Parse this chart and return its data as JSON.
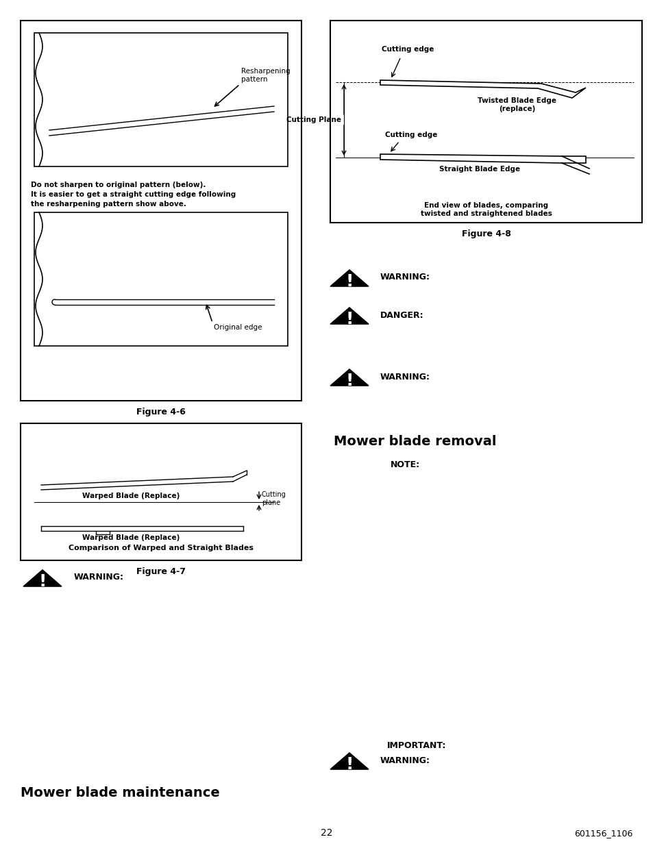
{
  "bg_color": "#ffffff",
  "page_num": "22",
  "page_code": "601156_1106",
  "fig6_caption": "Figure 4-6",
  "fig7_caption": "Figure 4-7",
  "fig8_caption": "Figure 4-8",
  "fig6_text1": "Do not sharpen to original pattern (below).",
  "fig6_text2": "It is easier to get a straight cutting edge following",
  "fig6_text3": "the resharpening pattern show above.",
  "fig6_label1": "Resharpening\npattern",
  "fig6_label2": "Original edge",
  "fig7_label1": "Warped Blade (Replace)",
  "fig7_label2": "Warped Blade (Replace)",
  "fig7_label3": "Cutting\nplane",
  "fig7_caption_text": "Comparison of Warped and Straight Blades",
  "fig8_label1": "Cutting edge",
  "fig8_label2": "Twisted Blade Edge\n(replace)",
  "fig8_label3": "Cutting Plane",
  "fig8_label4": "Cutting edge",
  "fig8_label5": "Straight Blade Edge",
  "fig8_label6": "End view of blades, comparing\ntwisted and straightened blades",
  "warning_label": "WARNING:",
  "danger_label": "DANGER:",
  "note_label": "NOTE:",
  "important_label": "IMPORTANT:",
  "mower_blade_maintenance": "Mower blade maintenance",
  "mower_blade_removal": "Mower blade removal"
}
